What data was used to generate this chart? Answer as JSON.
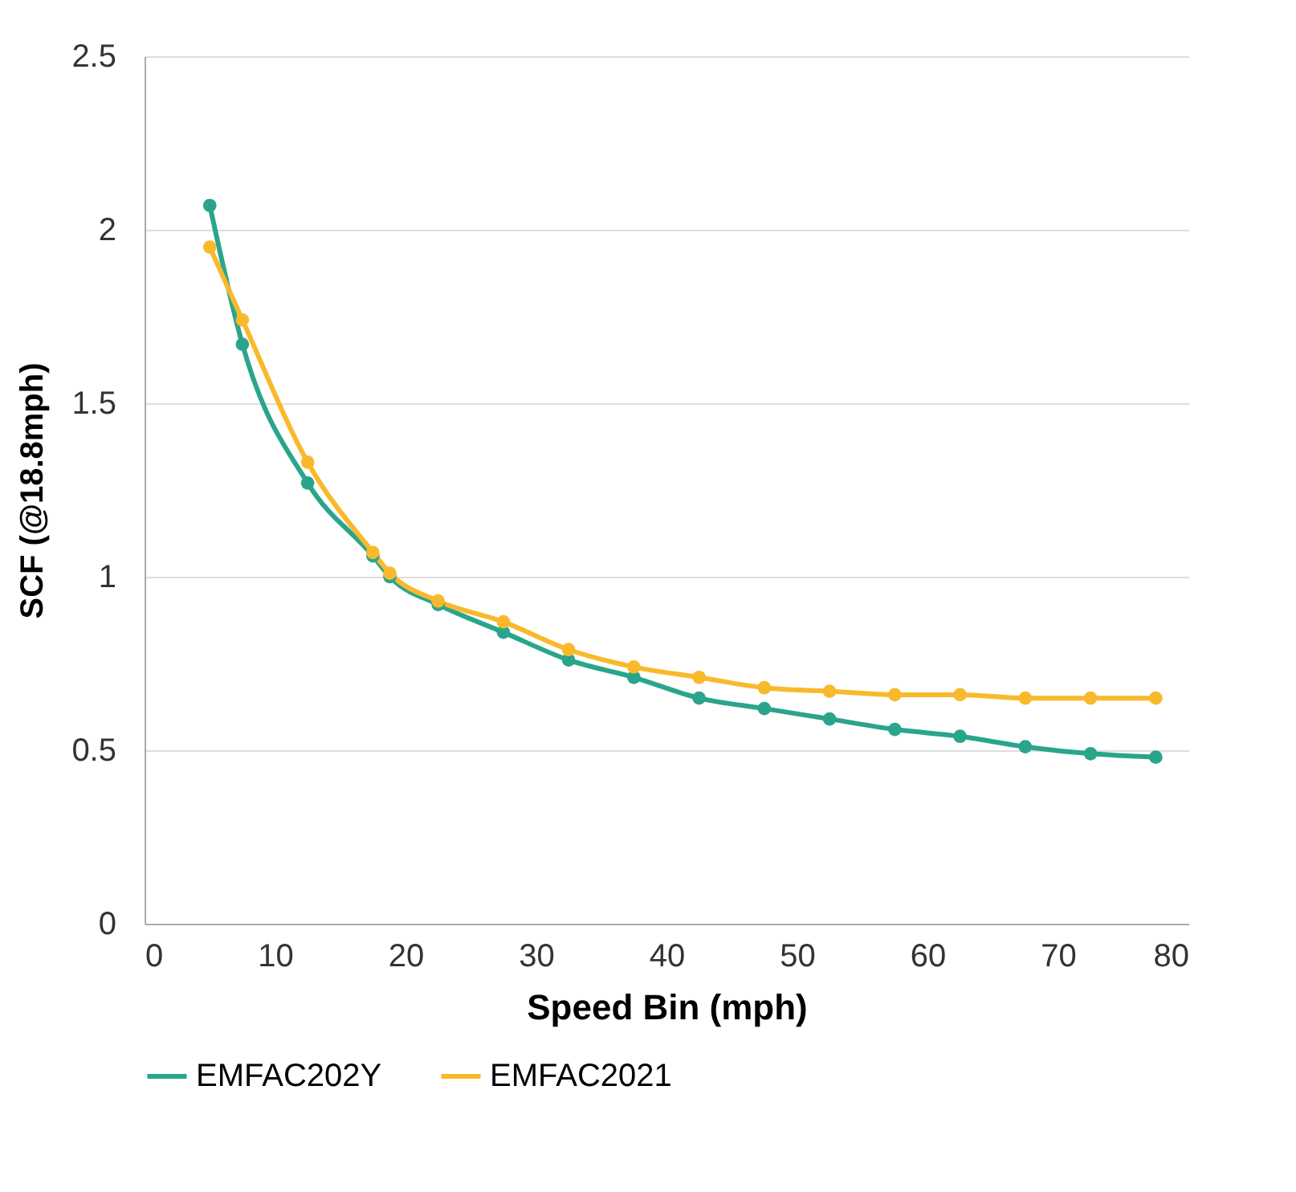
{
  "chart_data": {
    "type": "line",
    "xlabel": "Speed Bin (mph)",
    "ylabel": "SCF (@18.8mph)",
    "x": [
      5,
      7.5,
      12.5,
      17.5,
      18.8,
      22.5,
      27.5,
      32.5,
      37.5,
      42.5,
      47.5,
      52.5,
      57.5,
      62.5,
      67.5,
      72.5,
      77.5
    ],
    "series": [
      {
        "name": "EMFAC202Y",
        "color": "#2aa58c",
        "values": [
          2.07,
          1.67,
          1.27,
          1.06,
          1.0,
          0.92,
          0.84,
          0.76,
          0.71,
          0.65,
          0.62,
          0.59,
          0.56,
          0.54,
          0.51,
          0.49,
          0.48
        ]
      },
      {
        "name": "EMFAC2021",
        "color": "#f9b92c",
        "values": [
          1.95,
          1.74,
          1.33,
          1.07,
          1.01,
          0.93,
          0.87,
          0.79,
          0.74,
          0.71,
          0.68,
          0.67,
          0.66,
          0.66,
          0.65,
          0.65,
          0.65
        ]
      }
    ],
    "xlim": [
      0,
      80
    ],
    "xticks": [
      0,
      10,
      20,
      30,
      40,
      50,
      60,
      70,
      80
    ],
    "ylim": [
      0,
      2.5
    ],
    "yticks": [
      0,
      0.5,
      1,
      1.5,
      2,
      2.5
    ],
    "grid": "y",
    "legend": "bottom",
    "marker": "circle",
    "line_style": "solid"
  }
}
